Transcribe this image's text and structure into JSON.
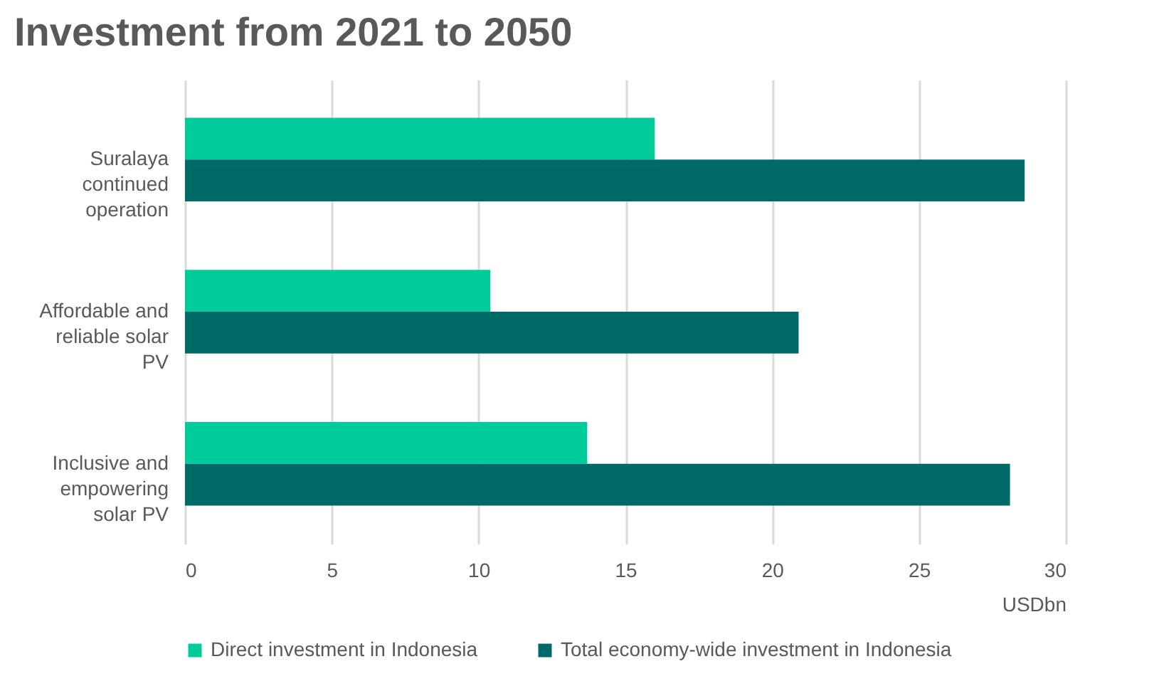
{
  "chart_data": {
    "type": "bar",
    "orientation": "horizontal",
    "title": "Investment from 2021 to 2050",
    "xlabel": "USDbn",
    "categories": [
      "Suralaya continued operation",
      "Affordable and reliable solar PV",
      "Inclusive and empowering solar PV"
    ],
    "series": [
      {
        "name": "Direct investment in Indonesia",
        "color": "#00cc99",
        "values": [
          16.0,
          10.4,
          13.7
        ]
      },
      {
        "name": "Total economy-wide investment in Indonesia",
        "color": "#006a68",
        "values": [
          28.6,
          20.9,
          28.1
        ]
      }
    ],
    "xlim": [
      0,
      30
    ],
    "xticks": [
      0,
      5,
      10,
      15,
      20,
      25,
      30
    ],
    "grid": "x",
    "legend": "bottom"
  }
}
